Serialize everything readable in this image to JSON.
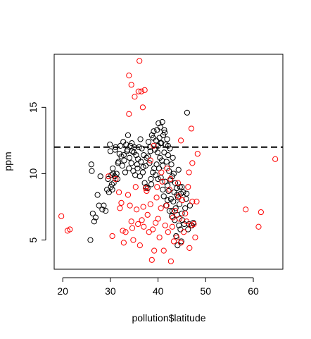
{
  "chart_data": {
    "type": "scatter",
    "title": "",
    "xlabel": "pollution$latitude",
    "ylabel": "ppm",
    "xlim": [
      18.2,
      66.2
    ],
    "ylim": [
      2.8,
      19.0
    ],
    "xticks": [
      20,
      30,
      40,
      50,
      60
    ],
    "yticks": [
      5,
      10,
      15
    ],
    "tick_labels_x": [
      "20",
      "30",
      "40",
      "50",
      "60"
    ],
    "tick_labels_y": [
      "5",
      "10",
      "15"
    ],
    "grid": false,
    "legend": "none",
    "reference_line": {
      "y": 12,
      "style": "dashed",
      "color": "#000000"
    },
    "series": [
      {
        "color": "#000000",
        "points": [
          [
            25.8,
            5.0
          ],
          [
            26.0,
            10.7
          ],
          [
            26.1,
            10.2
          ],
          [
            26.3,
            7.0
          ],
          [
            26.6,
            6.4
          ],
          [
            26.9,
            6.7
          ],
          [
            27.3,
            8.4
          ],
          [
            27.6,
            7.6
          ],
          [
            27.9,
            9.8
          ],
          [
            28.3,
            7.3
          ],
          [
            28.6,
            7.6
          ],
          [
            29.0,
            7.2
          ],
          [
            29.3,
            8.8
          ],
          [
            29.5,
            9.6
          ],
          [
            29.7,
            8.6
          ],
          [
            29.9,
            12.2
          ],
          [
            30.0,
            11.7
          ],
          [
            30.1,
            9.0
          ],
          [
            30.2,
            9.9
          ],
          [
            30.3,
            9.2
          ],
          [
            30.4,
            8.8
          ],
          [
            30.5,
            10.4
          ],
          [
            30.7,
            9.3
          ],
          [
            30.9,
            9.8
          ],
          [
            31.0,
            11.8
          ],
          [
            31.1,
            12.0
          ],
          [
            31.3,
            10.0
          ],
          [
            31.5,
            9.6
          ],
          [
            31.7,
            10.9
          ],
          [
            31.9,
            11.5
          ],
          [
            32.1,
            12.1
          ],
          [
            32.3,
            11.3
          ],
          [
            32.5,
            10.6
          ],
          [
            32.7,
            12.4
          ],
          [
            32.9,
            11.0
          ],
          [
            33.1,
            10.1
          ],
          [
            33.3,
            12.2
          ],
          [
            33.5,
            11.7
          ],
          [
            33.7,
            12.9
          ],
          [
            33.9,
            10.4
          ],
          [
            34.0,
            11.2
          ],
          [
            34.2,
            12.1
          ],
          [
            34.4,
            10.8
          ],
          [
            34.6,
            11.7
          ],
          [
            34.8,
            10.2
          ],
          [
            35.0,
            12.0
          ],
          [
            35.2,
            9.9
          ],
          [
            35.4,
            11.4
          ],
          [
            35.6,
            10.7
          ],
          [
            35.8,
            11.1
          ],
          [
            36.0,
            12.0
          ],
          [
            36.2,
            9.8
          ],
          [
            36.4,
            10.9
          ],
          [
            36.6,
            11.9
          ],
          [
            36.8,
            10.1
          ],
          [
            37.0,
            11.4
          ],
          [
            37.2,
            9.3
          ],
          [
            37.4,
            10.6
          ],
          [
            37.6,
            11.2
          ],
          [
            37.8,
            8.9
          ],
          [
            38.0,
            12.4
          ],
          [
            38.2,
            10.8
          ],
          [
            38.4,
            11.7
          ],
          [
            38.5,
            9.6
          ],
          [
            38.7,
            12.9
          ],
          [
            38.9,
            10.1
          ],
          [
            39.1,
            13.2
          ],
          [
            39.3,
            11.8
          ],
          [
            39.5,
            9.9
          ],
          [
            39.6,
            12.5
          ],
          [
            39.7,
            10.7
          ],
          [
            39.8,
            13.3
          ],
          [
            39.9,
            11.6
          ],
          [
            40.0,
            12.1
          ],
          [
            40.1,
            13.8
          ],
          [
            40.2,
            10.4
          ],
          [
            40.3,
            12.7
          ],
          [
            40.4,
            11.2
          ],
          [
            40.5,
            13.5
          ],
          [
            40.6,
            9.7
          ],
          [
            40.7,
            12.3
          ],
          [
            40.8,
            11.0
          ],
          [
            40.9,
            13.9
          ],
          [
            41.0,
            10.6
          ],
          [
            41.1,
            12.9
          ],
          [
            41.2,
            8.3
          ],
          [
            41.3,
            11.6
          ],
          [
            41.4,
            13.1
          ],
          [
            41.5,
            9.4
          ],
          [
            41.6,
            12.2
          ],
          [
            41.7,
            7.6
          ],
          [
            41.8,
            10.9
          ],
          [
            41.9,
            12.6
          ],
          [
            42.0,
            9.1
          ],
          [
            42.1,
            11.4
          ],
          [
            42.2,
            8.7
          ],
          [
            42.3,
            10.2
          ],
          [
            42.4,
            7.2
          ],
          [
            42.5,
            11.9
          ],
          [
            42.6,
            9.5
          ],
          [
            42.7,
            8.1
          ],
          [
            42.8,
            10.7
          ],
          [
            42.9,
            6.8
          ],
          [
            43.0,
            9.8
          ],
          [
            43.1,
            11.2
          ],
          [
            43.2,
            7.9
          ],
          [
            43.3,
            10.0
          ],
          [
            43.4,
            8.6
          ],
          [
            43.5,
            6.5
          ],
          [
            43.6,
            9.3
          ],
          [
            43.7,
            7.4
          ],
          [
            43.8,
            5.3
          ],
          [
            43.9,
            8.9
          ],
          [
            44.0,
            6.9
          ],
          [
            44.1,
            4.6
          ],
          [
            44.2,
            8.2
          ],
          [
            44.3,
            10.3
          ],
          [
            44.4,
            6.1
          ],
          [
            44.5,
            7.7
          ],
          [
            44.6,
            9.0
          ],
          [
            44.7,
            5.8
          ],
          [
            44.8,
            8.5
          ],
          [
            44.9,
            4.9
          ],
          [
            45.0,
            7.0
          ],
          [
            45.1,
            6.5
          ],
          [
            45.3,
            8.6
          ],
          [
            45.5,
            6.2
          ],
          [
            45.7,
            7.4
          ],
          [
            45.9,
            8.1
          ],
          [
            46.1,
            14.6
          ],
          [
            46.3,
            5.8
          ],
          [
            46.5,
            6.2
          ],
          [
            46.7,
            7.6
          ],
          [
            47.1,
            6.1
          ],
          [
            47.4,
            6.3
          ],
          [
            34.5,
            12.3
          ],
          [
            36.3,
            12.6
          ],
          [
            38.3,
            12.0
          ],
          [
            39.0,
            12.7
          ],
          [
            40.5,
            12.3
          ],
          [
            41.3,
            13.3
          ],
          [
            42.1,
            12.1
          ],
          [
            37.9,
            11.3
          ],
          [
            36.9,
            10.5
          ],
          [
            35.7,
            10.4
          ],
          [
            34.9,
            11.6
          ],
          [
            33.6,
            11.8
          ],
          [
            32.8,
            11.4
          ],
          [
            31.6,
            10.8
          ],
          [
            30.6,
            10.0
          ],
          [
            39.2,
            10.4
          ],
          [
            40.0,
            9.6
          ],
          [
            41.0,
            8.8
          ],
          [
            42.0,
            8.0
          ],
          [
            43.0,
            7.2
          ],
          [
            44.0,
            8.4
          ],
          [
            45.0,
            9.0
          ],
          [
            46.0,
            8.5
          ],
          [
            38.6,
            9.2
          ],
          [
            37.5,
            9.0
          ]
        ]
      },
      {
        "color": "#ff0000",
        "points": [
          [
            19.7,
            6.8
          ],
          [
            21.0,
            5.7
          ],
          [
            21.5,
            5.8
          ],
          [
            29.6,
            9.8
          ],
          [
            30.4,
            5.3
          ],
          [
            31.8,
            8.6
          ],
          [
            32.0,
            7.4
          ],
          [
            32.3,
            7.8
          ],
          [
            32.6,
            5.7
          ],
          [
            32.8,
            4.8
          ],
          [
            33.2,
            5.6
          ],
          [
            33.7,
            8.4
          ],
          [
            34.1,
            7.6
          ],
          [
            34.4,
            6.4
          ],
          [
            34.6,
            5.9
          ],
          [
            34.8,
            5.0
          ],
          [
            33.9,
            17.4
          ],
          [
            34.4,
            16.7
          ],
          [
            35.1,
            15.8
          ],
          [
            35.9,
            16.2
          ],
          [
            36.1,
            18.5
          ],
          [
            36.5,
            16.2
          ],
          [
            37.2,
            16.3
          ],
          [
            36.8,
            15.0
          ],
          [
            33.9,
            14.5
          ],
          [
            35.5,
            7.3
          ],
          [
            35.8,
            6.2
          ],
          [
            36.2,
            4.6
          ],
          [
            36.6,
            6.5
          ],
          [
            37.0,
            6.0
          ],
          [
            37.4,
            8.9
          ],
          [
            37.8,
            6.9
          ],
          [
            38.1,
            5.6
          ],
          [
            38.4,
            7.7
          ],
          [
            38.7,
            3.5
          ],
          [
            38.9,
            5.8
          ],
          [
            39.2,
            4.2
          ],
          [
            39.5,
            6.3
          ],
          [
            39.7,
            8.2
          ],
          [
            40.0,
            6.6
          ],
          [
            40.3,
            5.2
          ],
          [
            40.6,
            7.4
          ],
          [
            40.9,
            9.4
          ],
          [
            41.2,
            4.2
          ],
          [
            41.5,
            6.1
          ],
          [
            41.8,
            7.6
          ],
          [
            42.1,
            5.6
          ],
          [
            42.4,
            8.8
          ],
          [
            42.7,
            3.4
          ],
          [
            43.0,
            6.0
          ],
          [
            43.3,
            4.9
          ],
          [
            43.6,
            7.2
          ],
          [
            43.9,
            5.2
          ],
          [
            44.2,
            9.3
          ],
          [
            44.5,
            6.6
          ],
          [
            44.8,
            4.8
          ],
          [
            45.1,
            8.0
          ],
          [
            45.4,
            5.6
          ],
          [
            45.7,
            7.0
          ],
          [
            46.0,
            6.4
          ],
          [
            46.3,
            9.0
          ],
          [
            46.6,
            4.4
          ],
          [
            46.9,
            6.1
          ],
          [
            47.2,
            7.9
          ],
          [
            47.5,
            6.2
          ],
          [
            47.8,
            5.2
          ],
          [
            48.1,
            7.9
          ],
          [
            46.5,
            10.1
          ],
          [
            47.2,
            10.8
          ],
          [
            47.0,
            13.4
          ],
          [
            48.3,
            11.5
          ],
          [
            44.8,
            12.5
          ],
          [
            39.1,
            12.1
          ],
          [
            38.4,
            11.0
          ],
          [
            40.7,
            10.1
          ],
          [
            41.9,
            10.4
          ],
          [
            36.9,
            7.5
          ],
          [
            37.6,
            8.7
          ],
          [
            35.3,
            9.0
          ],
          [
            31.1,
            9.6
          ],
          [
            58.4,
            7.3
          ],
          [
            61.1,
            6.0
          ],
          [
            61.6,
            7.1
          ],
          [
            64.6,
            11.1
          ],
          [
            39.8,
            9.0
          ],
          [
            42.6,
            9.6
          ],
          [
            44.3,
            8.3
          ],
          [
            43.1,
            6.7
          ]
        ]
      }
    ]
  }
}
